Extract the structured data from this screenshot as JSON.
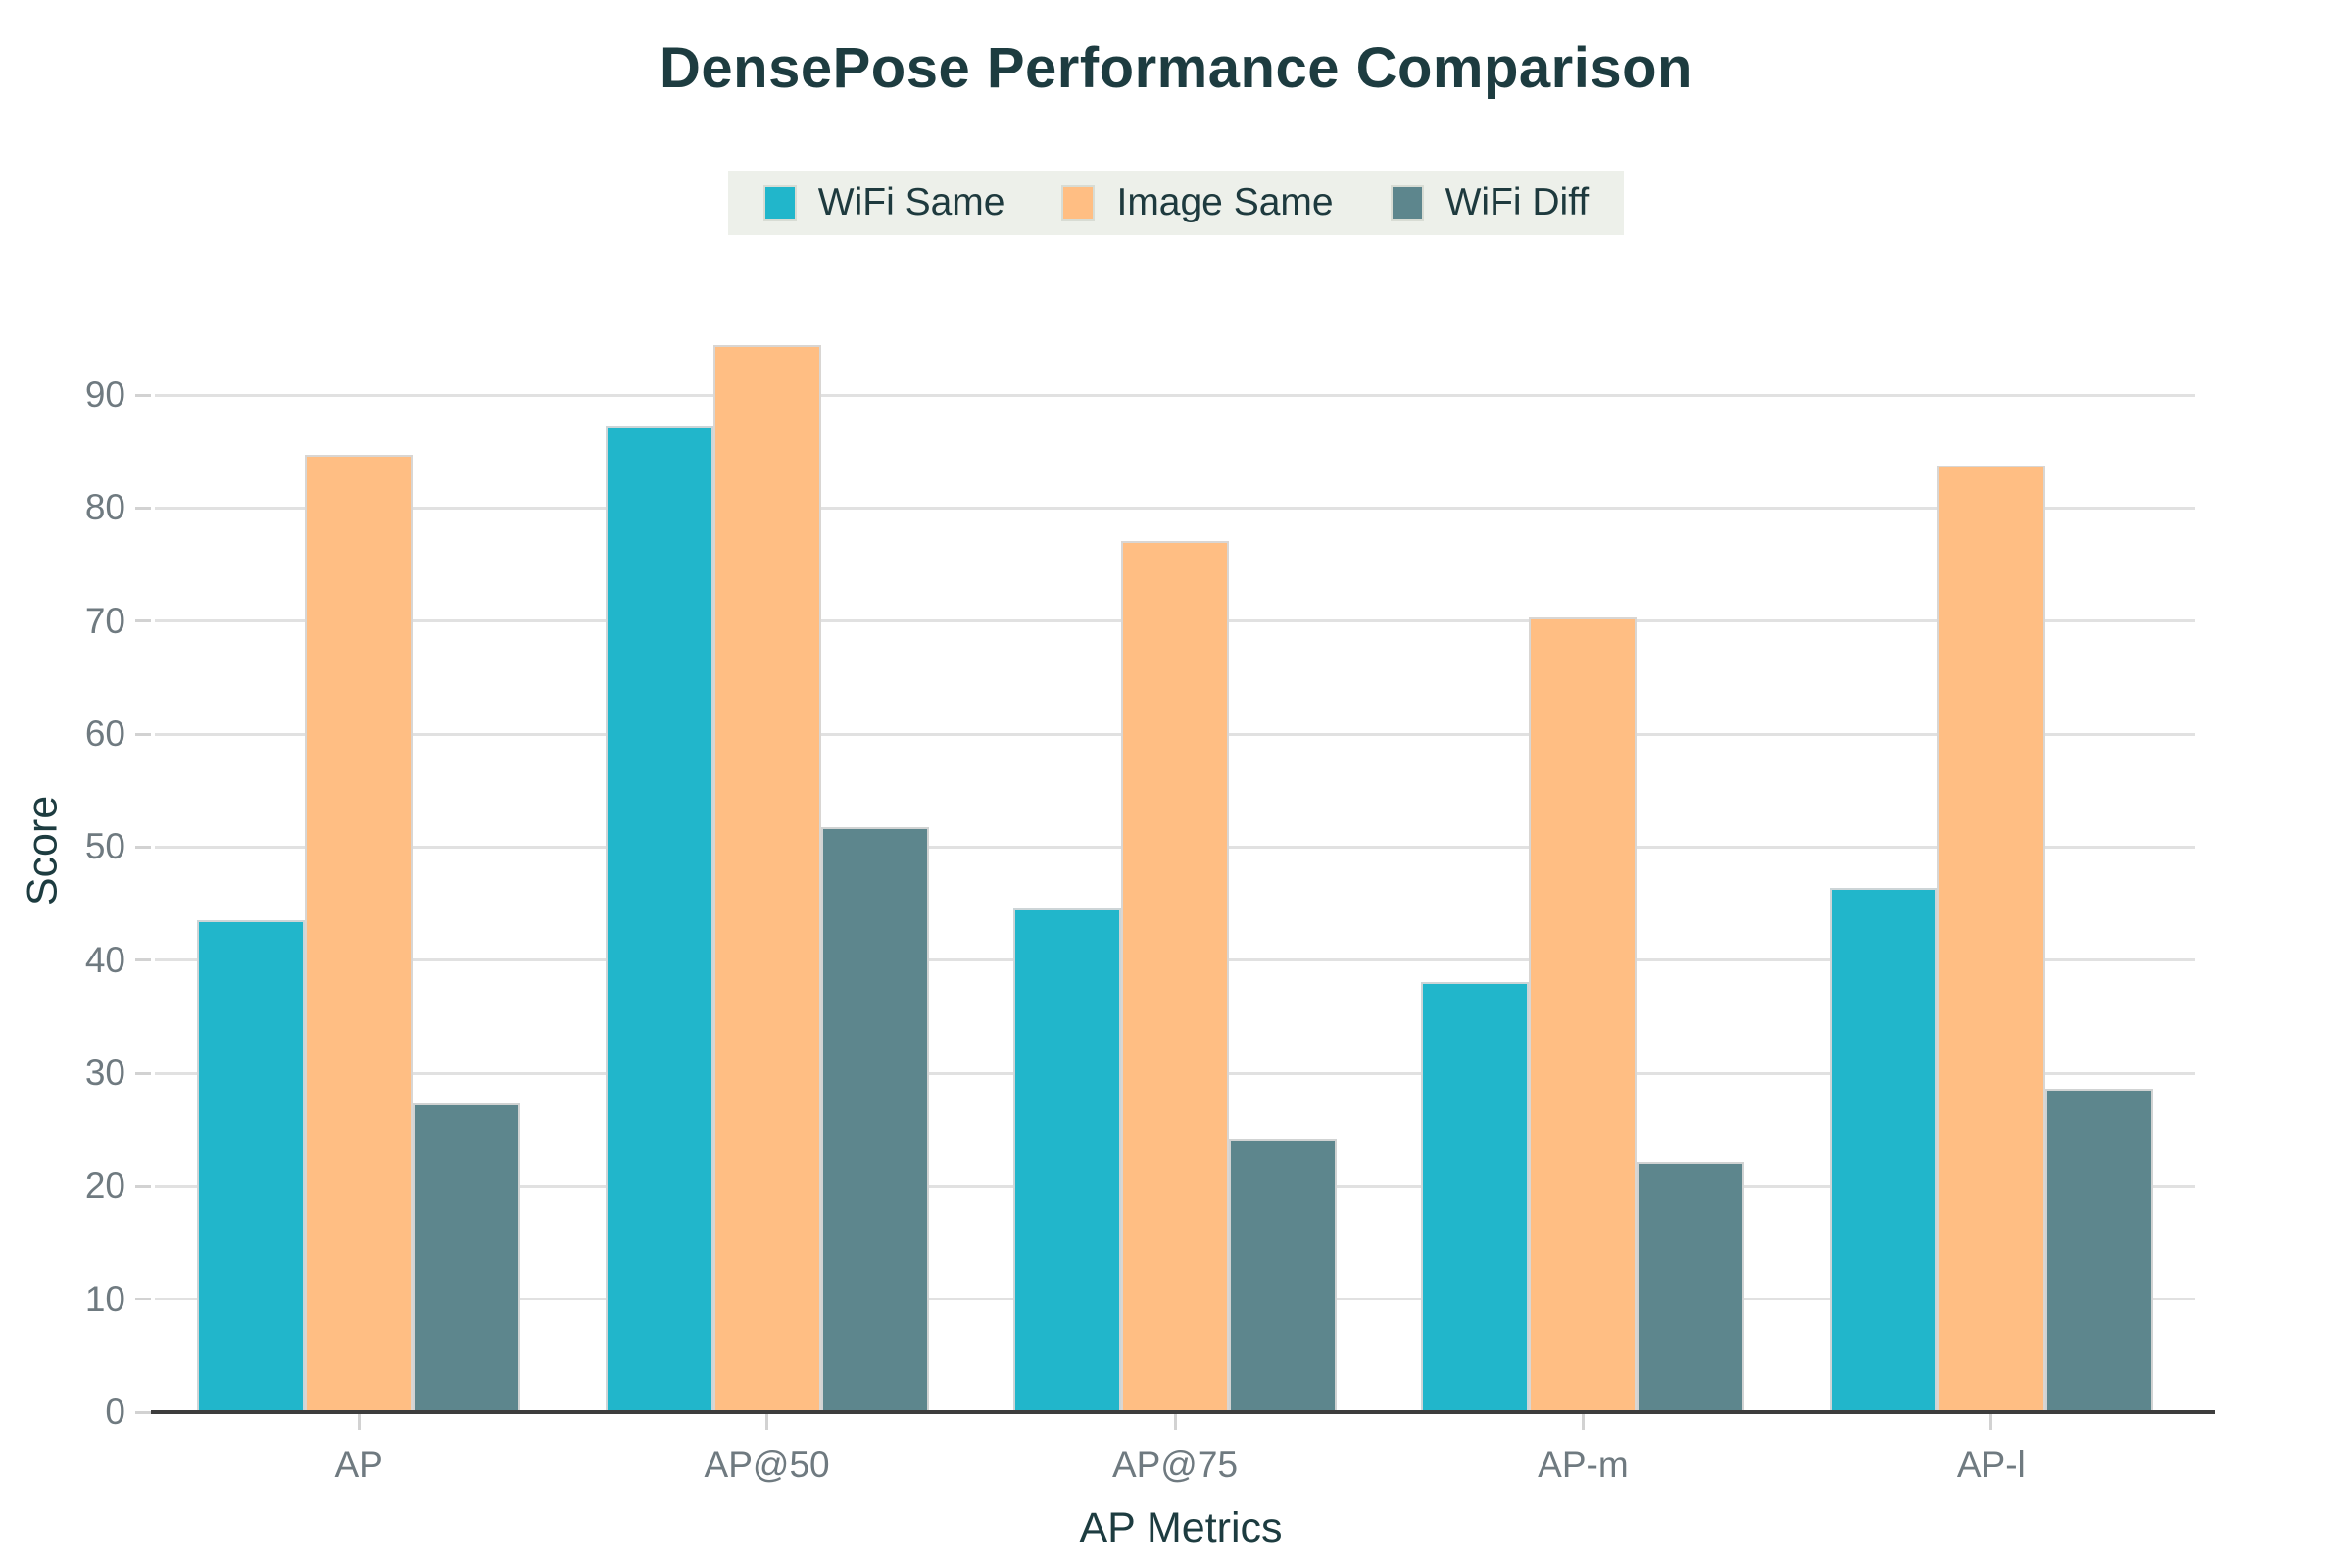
{
  "title": "DensePose Performance Comparison",
  "legend": {
    "items": [
      {
        "label": "WiFi Same",
        "color": "#21b6cb"
      },
      {
        "label": "Image Same",
        "color": "#ffbe83"
      },
      {
        "label": "WiFi Diff",
        "color": "#5d868d"
      }
    ],
    "background": "#edf0ea"
  },
  "chart_data": {
    "type": "bar",
    "title": "DensePose Performance Comparison",
    "categories": [
      "AP",
      "AP@50",
      "AP@75",
      "AP-m",
      "AP-l"
    ],
    "series": [
      {
        "name": "WiFi Same",
        "color": "#21b6cb",
        "values": [
          43.5,
          87.2,
          44.6,
          38.1,
          46.4
        ]
      },
      {
        "name": "Image Same",
        "color": "#ffbe83",
        "values": [
          84.7,
          94.4,
          77.1,
          70.3,
          83.8
        ]
      },
      {
        "name": "WiFi Diff",
        "color": "#5d868d",
        "values": [
          27.3,
          51.8,
          24.2,
          22.1,
          28.6
        ]
      }
    ],
    "xlabel": "AP Metrics",
    "ylabel": "Score",
    "ylim": [
      0,
      98
    ],
    "yticks": [
      0,
      10,
      20,
      30,
      40,
      50,
      60,
      70,
      80,
      90
    ],
    "grid": true,
    "legend_position": "top-center"
  },
  "colors": {
    "title_text": "#1d3c40",
    "axis_title_text": "#1d3c40",
    "tick_label_text": "#6f7a80",
    "gridline": "#e1e1e1",
    "axis_baseline": "#3d3d3d",
    "background": "#ffffff",
    "legend_background": "#edf0ea"
  }
}
